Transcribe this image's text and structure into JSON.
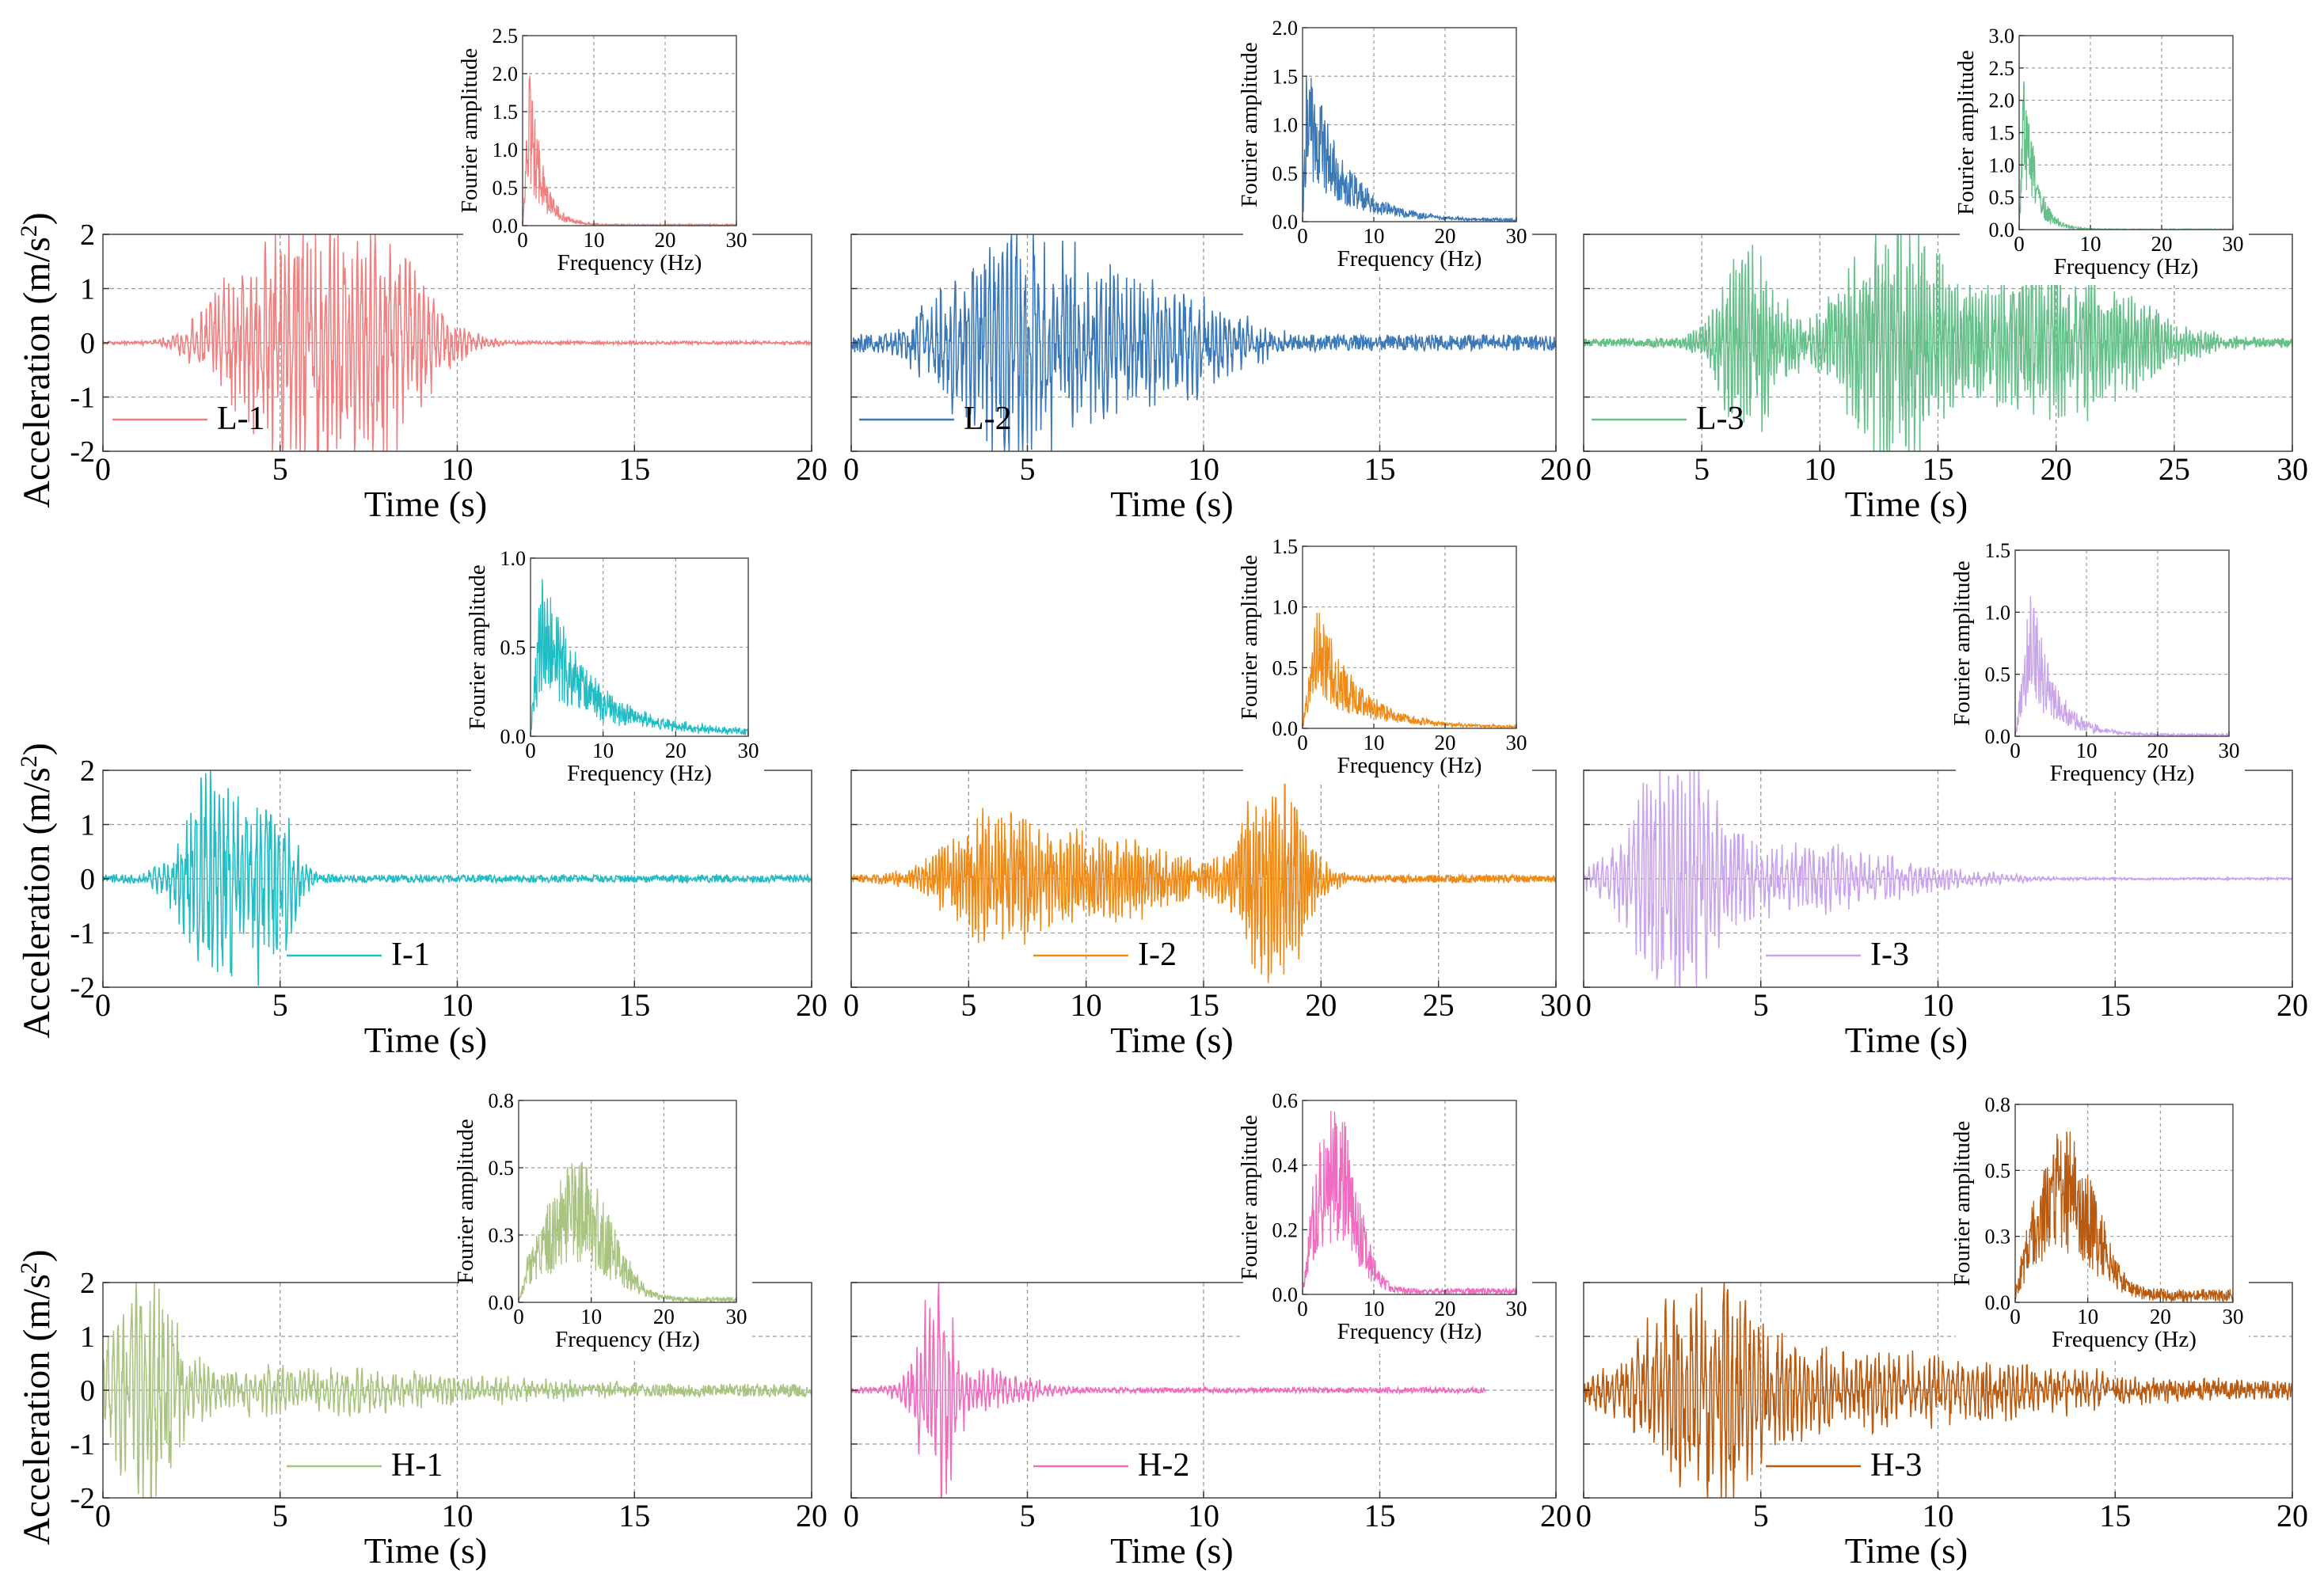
{
  "figure": {
    "y_axis_title": "Acceleration (m/s2)",
    "x_axis_title": "Time (s)",
    "inset_y_title": "Fourier amplitude",
    "inset_x_title": "Frequency (Hz)"
  },
  "chart_data": [
    {
      "id": "L-1",
      "type": "line",
      "legend": "L-1",
      "color": "#f08080",
      "xlabel": "Time (s)",
      "ylabel": "Acceleration (m/s2)",
      "xlim": [
        0,
        20
      ],
      "ylim": [
        -2,
        2
      ],
      "xticks": [
        0,
        5,
        10,
        15,
        20
      ],
      "yticks": [
        -2,
        -1,
        0,
        1,
        2
      ],
      "duration": 20,
      "events": [
        [
          5.3,
          1.7,
          2.5
        ],
        [
          7.5,
          2.0,
          3.0
        ],
        [
          3.6,
          0.6,
          2.0
        ]
      ],
      "noise": 0.03,
      "seed": 11,
      "inset": {
        "type": "line",
        "xlabel": "Frequency (Hz)",
        "ylabel": "Fourier amplitude",
        "xlim": [
          0,
          30
        ],
        "ylim": [
          0,
          2.5
        ],
        "xticks": [
          0,
          10,
          20,
          30
        ],
        "yticks": [
          0,
          0.5,
          1.0,
          1.5,
          2.0,
          2.5
        ],
        "peak": 2.2,
        "peak_freq": 1.0,
        "decay": 0.55,
        "floor": 0.02,
        "seed": 12
      }
    },
    {
      "id": "L-2",
      "type": "line",
      "legend": "L-2",
      "color": "#3a78b8",
      "xlabel": "Time (s)",
      "ylabel": "Acceleration (m/s2)",
      "xlim": [
        0,
        20
      ],
      "ylim": [
        -2,
        2
      ],
      "xticks": [
        0,
        5,
        10,
        15,
        20
      ],
      "yticks": [
        -2,
        -1,
        0,
        1,
        2
      ],
      "duration": 20,
      "events": [
        [
          4.5,
          1.9,
          3.5
        ],
        [
          8.5,
          1.0,
          4.0
        ]
      ],
      "noise": 0.15,
      "seed": 21,
      "inset": {
        "type": "line",
        "xlabel": "Frequency (Hz)",
        "ylabel": "Fourier amplitude",
        "xlim": [
          0,
          30
        ],
        "ylim": [
          0,
          2.0
        ],
        "xticks": [
          0,
          10,
          20,
          30
        ],
        "yticks": [
          0,
          0.5,
          1.0,
          1.5,
          2.0
        ],
        "peak": 1.8,
        "peak_freq": 0.6,
        "decay": 0.2,
        "floor": 0.03,
        "seed": 22
      }
    },
    {
      "id": "L-3",
      "type": "line",
      "legend": "L-3",
      "color": "#66c08a",
      "xlabel": "Time (s)",
      "ylabel": "Acceleration (m/s2)",
      "xlim": [
        0,
        30
      ],
      "ylim": [
        -2,
        2
      ],
      "xticks": [
        0,
        5,
        10,
        15,
        20,
        25,
        30
      ],
      "yticks": [
        -2,
        -1,
        0,
        1,
        2
      ],
      "duration": 30,
      "events": [
        [
          7,
          1.6,
          2.5
        ],
        [
          13,
          2.0,
          4.0
        ],
        [
          20,
          1.3,
          7.0
        ]
      ],
      "noise": 0.08,
      "seed": 31,
      "inset": {
        "type": "line",
        "xlabel": "Frequency (Hz)",
        "ylabel": "Fourier amplitude",
        "xlim": [
          0,
          30
        ],
        "ylim": [
          0,
          3.0
        ],
        "xticks": [
          0,
          10,
          20,
          30
        ],
        "yticks": [
          0,
          0.5,
          1.0,
          1.5,
          2.0,
          2.5,
          3.0
        ],
        "peak": 2.8,
        "peak_freq": 0.7,
        "decay": 0.6,
        "floor": 0.01,
        "seed": 32
      }
    },
    {
      "id": "I-1",
      "type": "line",
      "legend": "I-1",
      "color": "#22bcc4",
      "xlabel": "Time (s)",
      "ylabel": "Acceleration (m/s2)",
      "xlim": [
        0,
        20
      ],
      "ylim": [
        -2,
        2
      ],
      "xticks": [
        0,
        5,
        10,
        15,
        20
      ],
      "yticks": [
        -2,
        -1,
        0,
        1,
        2
      ],
      "duration": 20,
      "events": [
        [
          3.2,
          1.9,
          1.8
        ],
        [
          4.8,
          1.3,
          1.2
        ]
      ],
      "noise": 0.07,
      "seed": 41,
      "inset": {
        "type": "line",
        "xlabel": "Frequency (Hz)",
        "ylabel": "Fourier amplitude",
        "xlim": [
          0,
          30
        ],
        "ylim": [
          0,
          1.0
        ],
        "xticks": [
          0,
          10,
          20,
          30
        ],
        "yticks": [
          0,
          0.5,
          1.0
        ],
        "peak": 0.92,
        "peak_freq": 1.5,
        "decay": 0.15,
        "floor": 0.04,
        "seed": 42
      }
    },
    {
      "id": "I-2",
      "type": "line",
      "legend": "I-2",
      "color": "#f08a16",
      "xlabel": "Time (s)",
      "ylabel": "Acceleration (m/s2)",
      "xlim": [
        0,
        30
      ],
      "ylim": [
        -2,
        2
      ],
      "xticks": [
        0,
        5,
        10,
        15,
        20,
        25,
        30
      ],
      "yticks": [
        -2,
        -1,
        0,
        1,
        2
      ],
      "duration": 30,
      "events": [
        [
          6,
          1.0,
          4.0
        ],
        [
          11,
          0.7,
          6.0
        ],
        [
          18,
          1.9,
          2.5
        ]
      ],
      "noise": 0.07,
      "seed": 51,
      "inset": {
        "type": "line",
        "xlabel": "Frequency (Hz)",
        "ylabel": "Fourier amplitude",
        "xlim": [
          0,
          30
        ],
        "ylim": [
          0,
          1.5
        ],
        "xticks": [
          0,
          10,
          20,
          30
        ],
        "yticks": [
          0,
          0.5,
          1.0,
          1.5
        ],
        "peak": 1.05,
        "peak_freq": 2.0,
        "decay": 0.18,
        "floor": 0.02,
        "seed": 52
      }
    },
    {
      "id": "I-3",
      "type": "line",
      "legend": "I-3",
      "color": "#c9a4ec",
      "xlabel": "Time (s)",
      "ylabel": "Acceleration (m/s2)",
      "xlim": [
        0,
        20
      ],
      "ylim": [
        -2,
        2
      ],
      "xticks": [
        0,
        5,
        10,
        15,
        20
      ],
      "yticks": [
        -2,
        -1,
        0,
        1,
        2
      ],
      "duration": 20,
      "events": [
        [
          2.5,
          1.9,
          2.0
        ],
        [
          5.5,
          0.6,
          7.0
        ]
      ],
      "noise": 0.02,
      "seed": 61,
      "inset": {
        "type": "line",
        "xlabel": "Frequency (Hz)",
        "ylabel": "Fourier amplitude",
        "xlim": [
          0,
          30
        ],
        "ylim": [
          0,
          1.5
        ],
        "xticks": [
          0,
          10,
          20,
          30
        ],
        "yticks": [
          0,
          0.5,
          1.0,
          1.5
        ],
        "peak": 1.25,
        "peak_freq": 2.2,
        "decay": 0.3,
        "floor": 0.02,
        "seed": 62
      }
    },
    {
      "id": "H-1",
      "type": "line",
      "legend": "H-1",
      "color": "#a8c480",
      "xlabel": "Time (s)",
      "ylabel": "Acceleration (m/s2)",
      "xlim": [
        0,
        20
      ],
      "ylim": [
        -2,
        2
      ],
      "xticks": [
        0,
        5,
        10,
        15,
        20
      ],
      "yticks": [
        -2,
        -1,
        0,
        1,
        2
      ],
      "duration": 20,
      "events": [
        [
          1.2,
          1.9,
          1.5
        ],
        [
          5,
          0.4,
          10.0
        ]
      ],
      "noise": 0.12,
      "seed": 71,
      "inset": {
        "type": "line",
        "xlabel": "Frequency (Hz)",
        "ylabel": "Fourier amplitude",
        "xlim": [
          0,
          30
        ],
        "ylim": [
          0,
          0.75
        ],
        "xticks": [
          0,
          10,
          20,
          30
        ],
        "yticks": [
          0,
          0.25,
          0.5,
          0.75
        ],
        "peak": 0.52,
        "peak_freq": 8.0,
        "decay": 0.0,
        "spread": 4.5,
        "floor": 0.02,
        "seed": 72
      }
    },
    {
      "id": "H-2",
      "type": "line",
      "legend": "H-2",
      "color": "#f06cc0",
      "xlabel": "Time (s)",
      "ylabel": "Acceleration (m/s2)",
      "xlim": [
        0,
        20
      ],
      "ylim": [
        -2,
        2
      ],
      "xticks": [
        0,
        5,
        10,
        15,
        20
      ],
      "yticks": [
        -2,
        -1,
        0,
        1,
        2
      ],
      "duration": 18,
      "events": [
        [
          2.4,
          1.9,
          0.9
        ],
        [
          3.5,
          0.4,
          3.0
        ]
      ],
      "noise": 0.05,
      "seed": 81,
      "inset": {
        "type": "line",
        "xlabel": "Frequency (Hz)",
        "ylabel": "Fourier amplitude",
        "xlim": [
          0,
          30
        ],
        "ylim": [
          0,
          0.6
        ],
        "xticks": [
          0,
          10,
          20,
          30
        ],
        "yticks": [
          0,
          0.2,
          0.4,
          0.6
        ],
        "peak": 0.58,
        "peak_freq": 4.5,
        "decay": 0.0,
        "spread": 3.0,
        "floor": 0.02,
        "seed": 82
      }
    },
    {
      "id": "H-3",
      "type": "line",
      "legend": "H-3",
      "color": "#b85a10",
      "xlabel": "Time (s)",
      "ylabel": "Acceleration (m/s2)",
      "xlim": [
        0,
        20
      ],
      "ylim": [
        -2,
        2
      ],
      "xticks": [
        0,
        5,
        10,
        15,
        20
      ],
      "yticks": [
        -2,
        -1,
        0,
        1,
        2
      ],
      "duration": 20,
      "events": [
        [
          3.5,
          1.7,
          3.0
        ],
        [
          8,
          0.6,
          10.0
        ]
      ],
      "noise": 0.18,
      "seed": 91,
      "inset": {
        "type": "line",
        "xlabel": "Frequency (Hz)",
        "ylabel": "Fourier amplitude",
        "xlim": [
          0,
          30
        ],
        "ylim": [
          0,
          0.75
        ],
        "xticks": [
          0,
          10,
          20,
          30
        ],
        "yticks": [
          0,
          0.25,
          0.5,
          0.75
        ],
        "peak": 0.65,
        "peak_freq": 7.0,
        "decay": 0.0,
        "spread": 4.0,
        "floor": 0.05,
        "seed": 92
      }
    }
  ]
}
